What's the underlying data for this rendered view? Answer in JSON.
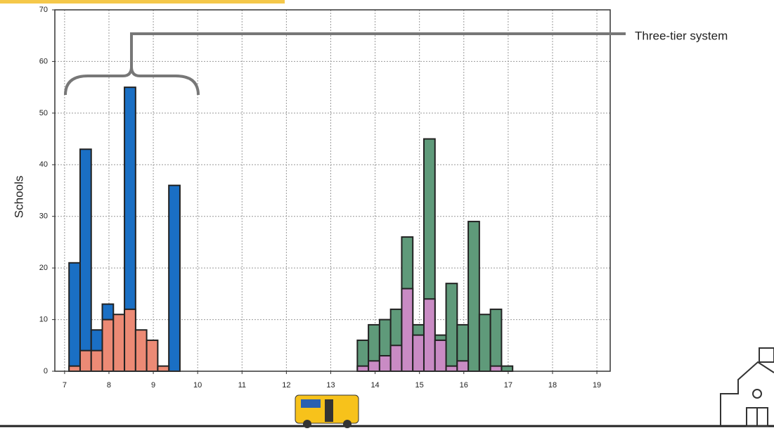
{
  "chart_data": {
    "type": "histogram",
    "y_label": "Schools",
    "annotation": "Three-tier system",
    "xlim": [
      6.78,
      19.3
    ],
    "ylim": [
      0,
      70
    ],
    "xticks": [
      7,
      8,
      9,
      10,
      11,
      12,
      13,
      14,
      15,
      16,
      17,
      18,
      19
    ],
    "yticks": [
      0,
      10,
      20,
      30,
      40,
      50,
      60,
      70
    ],
    "grid": true,
    "series": [
      {
        "color": "#1a6fc4",
        "bins": [
          7.1,
          7.35,
          7.6,
          7.85,
          8.1,
          8.35,
          8.6,
          8.85,
          9.1,
          9.35,
          9.6
        ],
        "values": [
          21,
          43,
          8,
          13,
          0,
          55,
          0,
          0,
          0,
          36
        ]
      },
      {
        "color": "#ec8a75",
        "bins": [
          7.1,
          7.35,
          7.6,
          7.85,
          8.1,
          8.35,
          8.6,
          8.85,
          9.1,
          9.35,
          9.6
        ],
        "values": [
          1,
          4,
          4,
          10,
          11,
          12,
          8,
          6,
          1,
          0
        ]
      },
      {
        "color": "#5f9a7a",
        "bins": [
          13.6,
          13.85,
          14.1,
          14.35,
          14.6,
          14.85,
          15.1,
          15.35,
          15.6,
          15.85,
          16.1,
          16.35,
          16.6,
          16.85,
          17.1
        ],
        "values": [
          6,
          9,
          10,
          12,
          26,
          9,
          45,
          7,
          17,
          9,
          29,
          11,
          12,
          1
        ]
      },
      {
        "color": "#c98bc4",
        "bins": [
          13.6,
          13.85,
          14.1,
          14.35,
          14.6,
          14.85,
          15.1,
          15.35,
          15.6,
          15.85,
          16.1,
          16.35,
          16.6,
          16.85,
          17.1
        ],
        "values": [
          1,
          2,
          3,
          5,
          16,
          7,
          14,
          6,
          1,
          2,
          0,
          0,
          1,
          0
        ]
      }
    ]
  }
}
